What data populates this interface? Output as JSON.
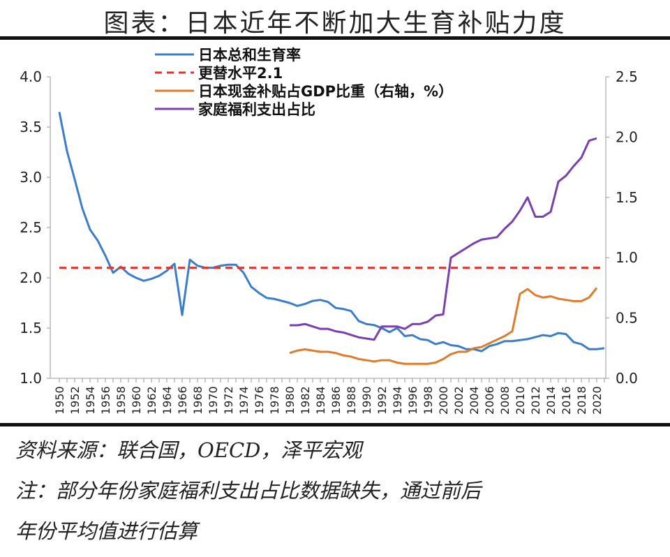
{
  "title": "图表：日本近年不断加大生育补贴力度",
  "source": "资料来源：联合国，OECD，泽平宏观",
  "note_line1": "注：部分年份家庭福利支出占比数据缺失，通过前后",
  "note_line2": "年份平均值进行估算",
  "chart_data": {
    "type": "line",
    "y_left": {
      "range": [
        1.0,
        4.0
      ],
      "ticks": [
        "1.0",
        "1.5",
        "2.0",
        "2.5",
        "3.0",
        "3.5",
        "4.0"
      ]
    },
    "y_right": {
      "range": [
        0.0,
        2.5
      ],
      "ticks": [
        "0.0",
        "0.5",
        "1.0",
        "1.5",
        "2.0",
        "2.5"
      ]
    },
    "x_ticks": [
      "1950",
      "1952",
      "1954",
      "1956",
      "1958",
      "1960",
      "1962",
      "1964",
      "1966",
      "1968",
      "1970",
      "1972",
      "1974",
      "1976",
      "1978",
      "1980",
      "1982",
      "1984",
      "1986",
      "1988",
      "1990",
      "1992",
      "1994",
      "1996",
      "1998",
      "2000",
      "2002",
      "2004",
      "2006",
      "2008",
      "2010",
      "2012",
      "2014",
      "2016",
      "2018",
      "2020"
    ],
    "legend_position": "top-left",
    "series": [
      {
        "name": "日本总和生育率",
        "axis": "left",
        "color": "#3a7dc9",
        "dash": false,
        "start": 1950,
        "values": [
          3.65,
          3.26,
          2.98,
          2.69,
          2.48,
          2.37,
          2.22,
          2.05,
          2.11,
          2.04,
          2.0,
          1.97,
          1.99,
          2.02,
          2.07,
          2.14,
          1.63,
          2.18,
          2.12,
          2.1,
          2.1,
          2.12,
          2.13,
          2.13,
          2.05,
          1.91,
          1.85,
          1.8,
          1.79,
          1.77,
          1.75,
          1.72,
          1.74,
          1.77,
          1.78,
          1.76,
          1.7,
          1.69,
          1.67,
          1.57,
          1.54,
          1.53,
          1.5,
          1.46,
          1.5,
          1.42,
          1.43,
          1.39,
          1.38,
          1.34,
          1.36,
          1.33,
          1.32,
          1.29,
          1.29,
          1.27,
          1.32,
          1.34,
          1.37,
          1.37,
          1.38,
          1.39,
          1.41,
          1.43,
          1.42,
          1.45,
          1.44,
          1.36,
          1.34,
          1.29,
          1.29,
          1.3
        ]
      },
      {
        "name": "更替水平2.1",
        "axis": "left",
        "color": "#e8312a",
        "dash": true,
        "start": 1950,
        "constant": 2.1,
        "end": 2021
      },
      {
        "name": "日本现金补贴占GDP比重（右轴，%）",
        "axis": "right",
        "color": "#e07b2c",
        "dash": false,
        "start": 1980,
        "values": [
          0.21,
          0.23,
          0.24,
          0.23,
          0.22,
          0.22,
          0.21,
          0.19,
          0.18,
          0.16,
          0.15,
          0.14,
          0.15,
          0.15,
          0.13,
          0.12,
          0.12,
          0.12,
          0.12,
          0.13,
          0.16,
          0.2,
          0.22,
          0.22,
          0.25,
          0.26,
          0.29,
          0.32,
          0.35,
          0.39,
          0.7,
          0.74,
          0.69,
          0.67,
          0.68,
          0.66,
          0.65,
          0.64,
          0.64,
          0.67,
          0.75
        ]
      },
      {
        "name": "家庭福利支出占比",
        "axis": "right",
        "color": "#7a3fb0",
        "dash": false,
        "start": 1980,
        "values": [
          0.44,
          0.44,
          0.45,
          0.43,
          0.41,
          0.41,
          0.39,
          0.38,
          0.36,
          0.34,
          0.33,
          0.32,
          0.43,
          0.43,
          0.43,
          0.41,
          0.45,
          0.45,
          0.47,
          0.52,
          0.53,
          1.0,
          1.04,
          1.08,
          1.12,
          1.15,
          1.16,
          1.17,
          1.24,
          1.3,
          1.39,
          1.5,
          1.34,
          1.34,
          1.38,
          1.63,
          1.68,
          1.76,
          1.83,
          1.97,
          1.99
        ]
      }
    ]
  }
}
